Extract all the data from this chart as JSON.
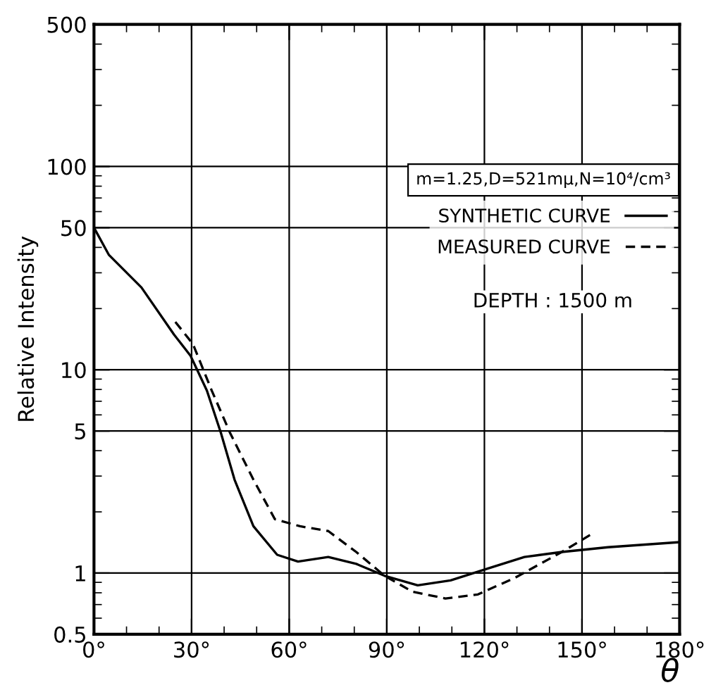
{
  "chart_data": {
    "type": "line",
    "ylabel": "Relative Intensity",
    "xlabel": "θ",
    "log": "y",
    "xlim": [
      0,
      180
    ],
    "ylim": [
      0.5,
      500
    ],
    "xticks": [
      {
        "value": 0,
        "label": "0°"
      },
      {
        "value": 30,
        "label": "30°"
      },
      {
        "value": 60,
        "label": "60°"
      },
      {
        "value": 90,
        "label": "90°"
      },
      {
        "value": 120,
        "label": "120°"
      },
      {
        "value": 150,
        "label": "150°"
      },
      {
        "value": 180,
        "label": "180°"
      }
    ],
    "yticks": [
      0.5,
      1,
      5,
      10,
      50,
      100,
      500
    ],
    "grid": true,
    "legend": "right",
    "marker": "none",
    "annotations": [
      "m=1.25,D=521mμ,N=10⁴/cm³",
      "DEPTH : 1500 m"
    ],
    "series": [
      {
        "name": "SYNTHETIC CURVE",
        "color": "#000000",
        "line_style": "solid",
        "x": [
          0,
          4.6,
          14.6,
          24.6,
          29.7,
          34.7,
          39,
          43.2,
          49,
          56.3,
          62.7,
          72,
          80.6,
          89.3,
          99.5,
          109.6,
          120.8,
          132.3,
          143.8,
          158,
          180
        ],
        "values": [
          50,
          36.7,
          25.4,
          14.9,
          11.7,
          7.9,
          4.9,
          2.88,
          1.7,
          1.23,
          1.14,
          1.2,
          1.11,
          0.97,
          0.87,
          0.92,
          1.05,
          1.2,
          1.27,
          1.34,
          1.42
        ]
      },
      {
        "name": "MEASURED CURVE",
        "color": "#000000",
        "line_style": "dashed",
        "x": [
          25,
          30.4,
          36.2,
          41.8,
          49,
          55.6,
          63.3,
          72,
          80.6,
          89.3,
          97.9,
          108,
          118,
          129.5,
          143.8,
          152.5
        ],
        "values": [
          17.2,
          13.4,
          7.9,
          4.9,
          2.88,
          1.84,
          1.7,
          1.61,
          1.27,
          0.97,
          0.81,
          0.75,
          0.785,
          0.95,
          1.27,
          1.54
        ]
      }
    ]
  }
}
